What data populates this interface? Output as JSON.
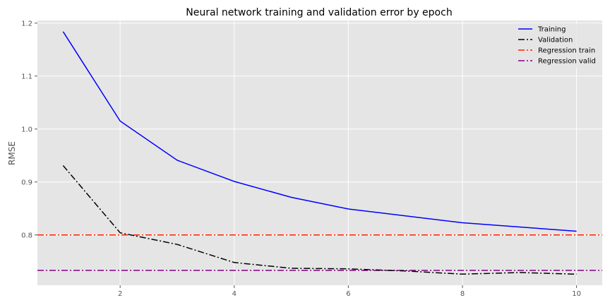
{
  "chart_data": {
    "type": "line",
    "title": "Neural network training and validation error by epoch",
    "xlabel": "",
    "ylabel": "RMSE",
    "xlim": [
      0.55,
      10.45
    ],
    "ylim": [
      0.705,
      1.205
    ],
    "xticks": [
      2,
      4,
      6,
      8,
      10
    ],
    "yticks": [
      0.8,
      0.9,
      1.0,
      1.1,
      1.2
    ],
    "ytick_labels": [
      "0.8",
      "0.9",
      "1.0",
      "1.1",
      "1.2"
    ],
    "grid": true,
    "legend_position": "top-right",
    "background_color": "#e5e5e5",
    "x": [
      1,
      2,
      3,
      4,
      5,
      6,
      7,
      8,
      9,
      10
    ],
    "series": [
      {
        "name": "Training",
        "style": "solid",
        "color": "#0000ff",
        "values": [
          1.184,
          1.015,
          0.941,
          0.901,
          0.871,
          0.849,
          0.836,
          0.823,
          0.815,
          0.807
        ]
      },
      {
        "name": "Validation",
        "style": "dashdot",
        "color": "#000000",
        "values": [
          0.931,
          0.804,
          0.782,
          0.748,
          0.737,
          0.736,
          0.732,
          0.726,
          0.729,
          0.726
        ]
      }
    ],
    "hlines": [
      {
        "name": "Regression train",
        "style": "dashdot",
        "color": "#ff2200",
        "y": 0.8
      },
      {
        "name": "Regression valid",
        "style": "dashdot",
        "color": "#800080",
        "y": 0.733
      }
    ]
  }
}
